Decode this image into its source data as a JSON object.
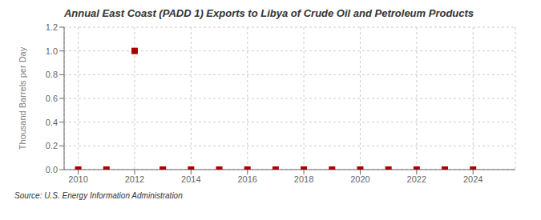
{
  "chart_data": {
    "type": "scatter",
    "title": "Annual East Coast (PADD 1) Exports to Libya of Crude Oil and Petroleum Products",
    "ylabel": "Thousand Barrels per Day",
    "annotations": [
      "Source: U.S. Energy Information Administration"
    ],
    "x": [
      2010,
      2011,
      2012,
      2013,
      2014,
      2015,
      2016,
      2017,
      2018,
      2019,
      2020,
      2021,
      2022,
      2023,
      2024
    ],
    "values": [
      0.0,
      0.0,
      1.0,
      0.0,
      0.0,
      0.0,
      0.0,
      0.0,
      0.0,
      0.0,
      0.0,
      0.0,
      0.0,
      0.0,
      0.0
    ],
    "color": "#aa0000",
    "marker": "square",
    "xlim": [
      2009.5,
      2025.5
    ],
    "ylim": [
      0.0,
      1.2
    ],
    "xticks": [
      2010,
      2012,
      2014,
      2016,
      2018,
      2020,
      2022,
      2024
    ],
    "yticks": [
      {
        "value": 0.0,
        "label": "0.0"
      },
      0.2,
      0.4,
      0.6,
      0.8,
      {
        "value": 1.0,
        "label": "1.0"
      },
      1.2
    ],
    "grid": true
  }
}
